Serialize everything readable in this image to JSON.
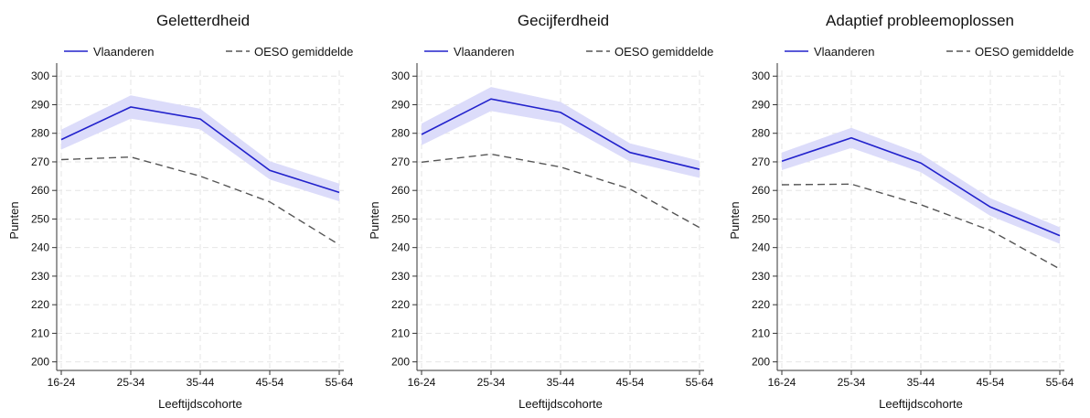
{
  "colors": {
    "vlaanderen": "#2222cc",
    "band": "#dcdcfa",
    "oeso": "#555555",
    "grid": "#e6e6e6",
    "axis": "#333333"
  },
  "legend": {
    "series1": "Vlaanderen",
    "series2": "OESO gemiddelde"
  },
  "chart_data": [
    {
      "type": "line",
      "title": "Geletterdheid",
      "xlabel": "Leeftijdscohorte",
      "ylabel": "Punten",
      "categories": [
        "16-24",
        "25-34",
        "35-44",
        "45-54",
        "55-64"
      ],
      "ylim": [
        197,
        302
      ],
      "yticks": [
        200,
        210,
        220,
        230,
        240,
        250,
        260,
        270,
        280,
        290,
        300
      ],
      "grid": true,
      "legend_position": "top",
      "series": [
        {
          "name": "Vlaanderen",
          "values": [
            277.8,
            289.2,
            285.0,
            267.0,
            259.3
          ],
          "ci_low": [
            274.3,
            285.1,
            281.4,
            263.8,
            256.2
          ],
          "ci_high": [
            281.3,
            293.3,
            288.6,
            270.2,
            262.4
          ]
        },
        {
          "name": "OESO gemiddelde",
          "values": [
            270.8,
            271.7,
            265.0,
            256.0,
            241.0
          ]
        }
      ]
    },
    {
      "type": "line",
      "title": "Gecijferdheid",
      "xlabel": "Leeftijdscohorte",
      "ylabel": "Punten",
      "categories": [
        "16-24",
        "25-34",
        "35-44",
        "45-54",
        "55-64"
      ],
      "ylim": [
        197,
        302
      ],
      "yticks": [
        200,
        210,
        220,
        230,
        240,
        250,
        260,
        270,
        280,
        290,
        300
      ],
      "grid": true,
      "legend_position": "top",
      "series": [
        {
          "name": "Vlaanderen",
          "values": [
            279.6,
            292.0,
            287.3,
            273.3,
            267.4
          ],
          "ci_low": [
            275.8,
            287.8,
            283.6,
            270.1,
            264.4
          ],
          "ci_high": [
            283.4,
            296.2,
            291.0,
            276.5,
            270.4
          ]
        },
        {
          "name": "OESO gemiddelde",
          "values": [
            269.9,
            272.7,
            268.2,
            260.5,
            247.0
          ]
        }
      ]
    },
    {
      "type": "line",
      "title": "Adaptief probleemoplossen",
      "xlabel": "Leeftijdscohorte",
      "ylabel": "Punten",
      "categories": [
        "16-24",
        "25-34",
        "35-44",
        "45-54",
        "55-64"
      ],
      "ylim": [
        197,
        302
      ],
      "yticks": [
        200,
        210,
        220,
        230,
        240,
        250,
        260,
        270,
        280,
        290,
        300
      ],
      "grid": true,
      "legend_position": "top",
      "series": [
        {
          "name": "Vlaanderen",
          "values": [
            270.2,
            278.4,
            269.6,
            254.2,
            244.2
          ],
          "ci_low": [
            267.1,
            274.9,
            266.4,
            251.1,
            241.3
          ],
          "ci_high": [
            273.3,
            281.9,
            272.8,
            257.3,
            247.1
          ]
        },
        {
          "name": "OESO gemiddelde",
          "values": [
            262.0,
            262.2,
            255.0,
            246.0,
            232.5
          ]
        }
      ]
    }
  ]
}
